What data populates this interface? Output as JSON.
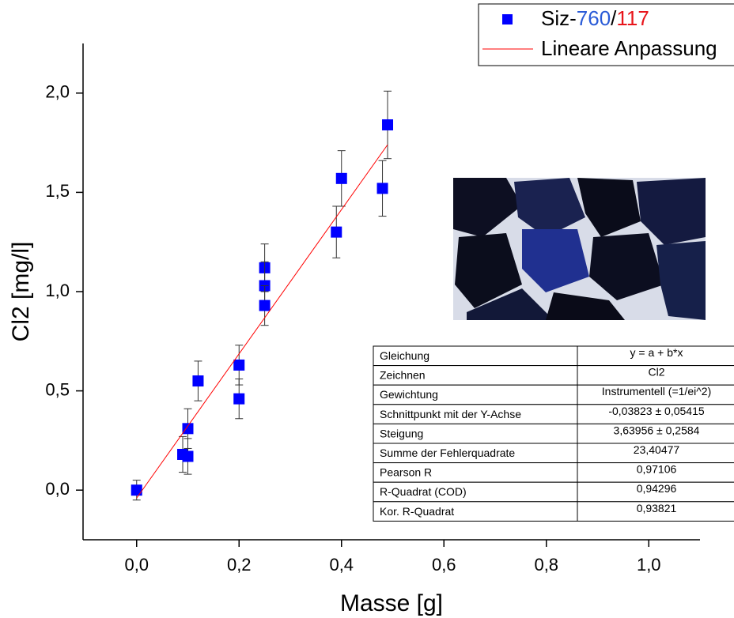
{
  "chart_data": {
    "type": "scatter",
    "xlabel": "Masse [g]",
    "ylabel": "Cl2 [mg/l]",
    "xlim": [
      -0.1,
      1.1
    ],
    "ylim": [
      -0.25,
      2.25
    ],
    "xticks": [
      {
        "value": 0,
        "label": "0,0"
      },
      {
        "value": 0.2,
        "label": "0,2"
      },
      {
        "value": 0.4,
        "label": "0,4"
      },
      {
        "value": 0.6,
        "label": "0,6"
      },
      {
        "value": 0.8,
        "label": "0,8"
      },
      {
        "value": 1,
        "label": "1,0"
      }
    ],
    "yticks": [
      {
        "value": 0,
        "label": "0,0"
      },
      {
        "value": 0.5,
        "label": "0,5"
      },
      {
        "value": 1,
        "label": "1,0"
      },
      {
        "value": 1.5,
        "label": "1,5"
      },
      {
        "value": 2,
        "label": "2,0"
      }
    ],
    "series": [
      {
        "name_parts": [
          {
            "text": "Siz-",
            "color": "#000000"
          },
          {
            "text": "760",
            "color": "#2a5bd7"
          },
          {
            "text": "/",
            "color": "#000000"
          },
          {
            "text": "117",
            "color": "#e8151b"
          }
        ],
        "color": "#0000ff",
        "x": [
          0,
          0.09,
          0.1,
          0.1,
          0.12,
          0.2,
          0.2,
          0.25,
          0.25,
          0.25,
          0.39,
          0.4,
          0.48,
          0.49
        ],
        "values": [
          0,
          0.18,
          0.17,
          0.31,
          0.55,
          0.63,
          0.46,
          1.12,
          1.03,
          0.93,
          1.3,
          1.57,
          1.52,
          1.84
        ],
        "errors": [
          0.05,
          0.09,
          0.09,
          0.1,
          0.1,
          0.1,
          0.1,
          0.12,
          0.12,
          0.1,
          0.13,
          0.14,
          0.14,
          0.17
        ]
      },
      {
        "name": "Lineare Anpassung",
        "type": "line",
        "color": "#ff0000",
        "x": [
          0,
          0.49
        ],
        "values": [
          -0.04,
          1.74
        ]
      }
    ],
    "fit_table": [
      [
        "Gleichung",
        "y = a + b*x"
      ],
      [
        "Zeichnen",
        "Cl2"
      ],
      [
        "Gewichtung",
        "Instrumentell (=1/ei^2)"
      ],
      [
        "Schnittpunkt mit der Y-Achse",
        "-0,03823 ± 0,05415"
      ],
      [
        "Steigung",
        "3,63956 ± 0,2584"
      ],
      [
        "Summe der Fehlerquadrate",
        "23,40477"
      ],
      [
        "Pearson R",
        "0,97106"
      ],
      [
        "R-Quadrat (COD)",
        "0,94296"
      ],
      [
        "Kor. R-Quadrat",
        "0,93821"
      ]
    ]
  }
}
